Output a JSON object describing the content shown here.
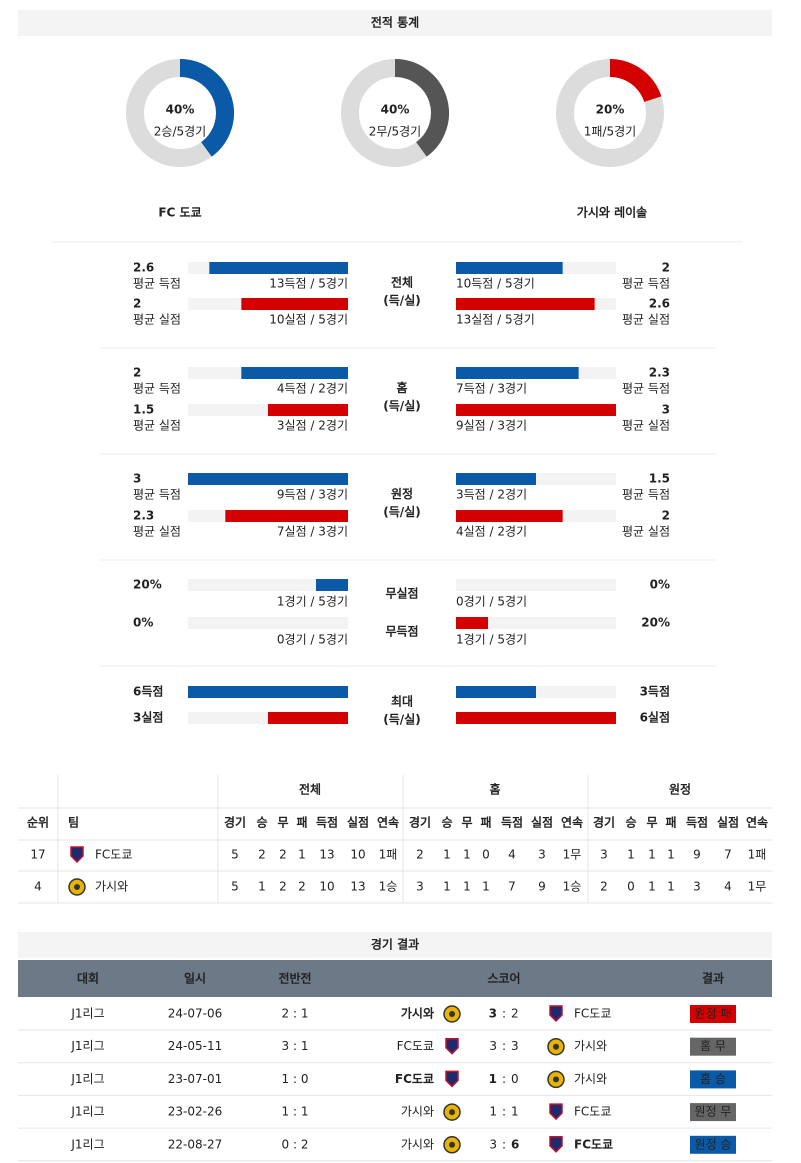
{
  "stats_header": "전적 통계",
  "donuts": [
    {
      "value": 40,
      "label": "40%",
      "sub": "2승/5경기",
      "color": "#0a5aa8"
    },
    {
      "value": 40,
      "label": "40%",
      "sub": "2무/5경기",
      "color": "#555555"
    },
    {
      "value": 20,
      "label": "20%",
      "sub": "1패/5경기",
      "color": "#d40000"
    }
  ],
  "teams": {
    "home": "FC 도쿄",
    "away": "가시와 레이솔"
  },
  "blocks": [
    {
      "title": [
        "전체",
        "(득/실)"
      ],
      "rows": [
        {
          "color": "#0a5aa8",
          "left": {
            "value": 2.6,
            "caption": "평균 득점",
            "detail": "13득점 / 5경기"
          },
          "right": {
            "value": 2,
            "caption": "평균 득점",
            "detail": "10득점 / 5경기"
          }
        },
        {
          "color": "#d40000",
          "left": {
            "value": 2,
            "caption": "평균 실점",
            "detail": "10실점 / 5경기"
          },
          "right": {
            "value": 2.6,
            "caption": "평균 실점",
            "detail": "13실점 / 5경기"
          }
        }
      ]
    },
    {
      "title": [
        "홈",
        "(득/실)"
      ],
      "rows": [
        {
          "color": "#0a5aa8",
          "left": {
            "value": 2,
            "caption": "평균 득점",
            "detail": "4득점 / 2경기"
          },
          "right": {
            "value": 2.3,
            "caption": "평균 득점",
            "detail": "7득점 / 3경기"
          }
        },
        {
          "color": "#d40000",
          "left": {
            "value": 1.5,
            "caption": "평균 실점",
            "detail": "3실점 / 2경기"
          },
          "right": {
            "value": 3,
            "caption": "평균 실점",
            "detail": "9실점 / 3경기"
          }
        }
      ]
    },
    {
      "title": [
        "원정",
        "(득/실)"
      ],
      "rows": [
        {
          "color": "#0a5aa8",
          "left": {
            "value": 3,
            "caption": "평균 득점",
            "detail": "9득점 / 3경기"
          },
          "right": {
            "value": 1.5,
            "caption": "평균 득점",
            "detail": "3득점 / 2경기"
          }
        },
        {
          "color": "#d40000",
          "left": {
            "value": 2.3,
            "caption": "평균 실점",
            "detail": "7실점 / 3경기"
          },
          "right": {
            "value": 2,
            "caption": "평균 실점",
            "detail": "4실점 / 2경기"
          }
        }
      ]
    },
    {
      "rows": [
        {
          "title": "무실점",
          "color": "#0a5aa8",
          "left": {
            "value": {
              "value": 20,
              "label": "20%"
            },
            "detail": "1경기 / 5경기"
          },
          "right": {
            "value": {
              "value": 0,
              "label": "0%"
            },
            "detail": "0경기 / 5경기"
          }
        },
        {
          "title": "무득점",
          "color": "#d40000",
          "left": {
            "value": {
              "value": 0,
              "label": "0%"
            },
            "detail": "0경기 / 5경기"
          },
          "right": {
            "value": {
              "value": 20,
              "label": "20%"
            },
            "detail": "1경기 / 5경기"
          }
        }
      ]
    },
    {
      "title": [
        "최대",
        "(득/실)"
      ],
      "rows": [
        {
          "color": "#0a5aa8",
          "left": {
            "value": {
              "value": 6,
              "label": "6득점"
            }
          },
          "right": {
            "value": {
              "value": 3,
              "label": "3득점"
            }
          }
        },
        {
          "color": "#d40000",
          "left": {
            "value": {
              "value": 3,
              "label": "3실점"
            }
          },
          "right": {
            "value": {
              "value": 6,
              "label": "6실점"
            }
          }
        }
      ]
    }
  ],
  "standings": {
    "columns": [
      "순위",
      "팀"
    ],
    "group_headers": [
      "전체",
      "홈",
      "원정"
    ],
    "sub_columns": [
      "경기",
      "승",
      "무",
      "패",
      "득점",
      "실점",
      "연속"
    ],
    "rows": [
      {
        "rank": 17,
        "team": "FC도쿄",
        "stats": [
          [
            5,
            2,
            2,
            1,
            13,
            10,
            "1패"
          ],
          [
            2,
            1,
            1,
            0,
            4,
            3,
            "1무"
          ],
          [
            3,
            1,
            1,
            1,
            9,
            7,
            "1패"
          ]
        ]
      },
      {
        "rank": 4,
        "team": "가시와",
        "stats": [
          [
            5,
            1,
            2,
            2,
            10,
            13,
            "1승"
          ],
          [
            3,
            1,
            1,
            1,
            7,
            9,
            "1승"
          ],
          [
            2,
            0,
            1,
            1,
            3,
            4,
            "1무"
          ]
        ]
      }
    ]
  },
  "results": {
    "title": "경기 결과",
    "columns": [
      "대회",
      "일시",
      "전반전",
      "스코어",
      "결과"
    ],
    "score_separator": ":",
    "rows": [
      {
        "league": "J1리그",
        "date": "24-07-06",
        "half": "2 : 1",
        "home": "가시와",
        "away": "FC도쿄",
        "home_score": 3,
        "away_score": 2,
        "winner": "home",
        "result": "원정 패",
        "result_color": "#d40000"
      },
      {
        "league": "J1리그",
        "date": "24-05-11",
        "half": "3 : 1",
        "home": "FC도쿄",
        "away": "가시와",
        "home_score": 3,
        "away_score": 3,
        "winner": null,
        "result": "홈 무",
        "result_color": "#666666"
      },
      {
        "league": "J1리그",
        "date": "23-07-01",
        "half": "1 : 0",
        "home": "FC도쿄",
        "away": "가시와",
        "home_score": 1,
        "away_score": 0,
        "winner": "home",
        "result": "홈 승",
        "result_color": "#0a5aa8"
      },
      {
        "league": "J1리그",
        "date": "23-02-26",
        "half": "1 : 1",
        "home": "가시와",
        "away": "FC도쿄",
        "home_score": 1,
        "away_score": 1,
        "winner": null,
        "result": "원정 무",
        "result_color": "#666666"
      },
      {
        "league": "J1리그",
        "date": "22-08-27",
        "half": "0 : 2",
        "home": "가시와",
        "away": "FC도쿄",
        "home_score": 3,
        "away_score": 6,
        "winner": "away",
        "result": "원정 승",
        "result_color": "#0a5aa8"
      }
    ]
  }
}
